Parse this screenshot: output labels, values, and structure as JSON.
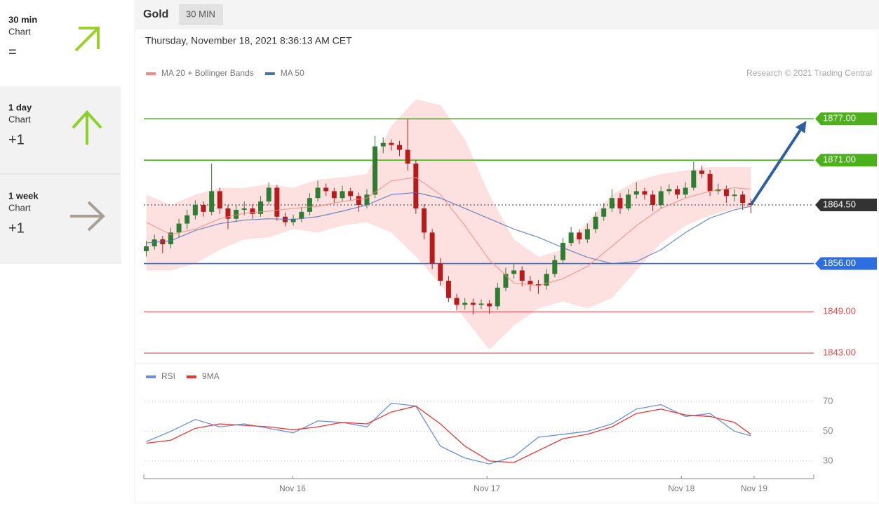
{
  "sidebar": [
    {
      "period": "30 min",
      "label": "Chart",
      "signal": "="
    },
    {
      "period": "1 day",
      "label": "Chart",
      "signal": "+1"
    },
    {
      "period": "1 week",
      "label": "Chart",
      "signal": "+1"
    }
  ],
  "header": {
    "instrument": "Gold",
    "interval": "30 MIN"
  },
  "timestamp": "Thursday, November 18, 2021 8:36:13 AM CET",
  "credit": "Research © 2021 Trading Central",
  "chart_data": [
    {
      "type": "candlestick",
      "xlim": [
        -0.3,
        81.7
      ],
      "ylim": [
        1841.8,
        1881
      ],
      "up_color": "#2e7d32",
      "down_color": "#b71c1c",
      "candles": [
        [
          1857.8,
          1859.3,
          1857.0,
          1858.5
        ],
        [
          1858.5,
          1860.2,
          1858.0,
          1859.5
        ],
        [
          1859.5,
          1860.0,
          1857.5,
          1858.8
        ],
        [
          1858.8,
          1861.2,
          1858.2,
          1860.5
        ],
        [
          1860.5,
          1862.5,
          1859.8,
          1861.8
        ],
        [
          1861.8,
          1863.8,
          1861.0,
          1863.0
        ],
        [
          1863.0,
          1865.2,
          1862.4,
          1864.5
        ],
        [
          1864.5,
          1865.0,
          1862.8,
          1863.5
        ],
        [
          1863.5,
          1870.5,
          1863.0,
          1866.5
        ],
        [
          1866.5,
          1867.0,
          1863.2,
          1864.0
        ],
        [
          1864.0,
          1864.5,
          1861.0,
          1862.5
        ],
        [
          1862.5,
          1864.5,
          1862.0,
          1863.8
        ],
        [
          1863.8,
          1865.0,
          1863.0,
          1864.0
        ],
        [
          1864.0,
          1864.6,
          1862.5,
          1863.2
        ],
        [
          1863.2,
          1865.8,
          1862.8,
          1865.0
        ],
        [
          1865.0,
          1867.8,
          1864.5,
          1867.0
        ],
        [
          1867.0,
          1867.4,
          1862.2,
          1862.8
        ],
        [
          1862.8,
          1863.4,
          1861.4,
          1862.0
        ],
        [
          1862.0,
          1863.1,
          1861.5,
          1862.5
        ],
        [
          1862.5,
          1864.2,
          1862.0,
          1863.5
        ],
        [
          1863.5,
          1866.2,
          1863.0,
          1865.5
        ],
        [
          1865.5,
          1868.0,
          1865.0,
          1867.0
        ],
        [
          1867.0,
          1867.6,
          1865.8,
          1866.5
        ],
        [
          1866.5,
          1867.0,
          1864.8,
          1865.5
        ],
        [
          1865.5,
          1867.3,
          1865.0,
          1866.5
        ],
        [
          1866.5,
          1867.0,
          1865.2,
          1865.8
        ],
        [
          1865.8,
          1866.3,
          1863.5,
          1864.5
        ],
        [
          1864.5,
          1866.8,
          1864.0,
          1866.0
        ],
        [
          1866.0,
          1874.5,
          1865.5,
          1873.0
        ],
        [
          1873.0,
          1874.3,
          1872.0,
          1873.5
        ],
        [
          1873.5,
          1874.0,
          1872.4,
          1873.2
        ],
        [
          1873.2,
          1873.8,
          1871.6,
          1872.5
        ],
        [
          1872.5,
          1877.0,
          1869.5,
          1870.5
        ],
        [
          1870.5,
          1871.0,
          1863.2,
          1864.0
        ],
        [
          1864.0,
          1864.6,
          1859.5,
          1860.5
        ],
        [
          1860.5,
          1861.0,
          1855.2,
          1856.0
        ],
        [
          1856.0,
          1856.8,
          1852.8,
          1853.5
        ],
        [
          1853.5,
          1854.2,
          1850.4,
          1851.0
        ],
        [
          1851.0,
          1851.6,
          1849.2,
          1850.0
        ],
        [
          1850.0,
          1851.0,
          1849.3,
          1850.3
        ],
        [
          1850.3,
          1850.9,
          1848.6,
          1850.0
        ],
        [
          1850.0,
          1850.8,
          1849.4,
          1850.2
        ],
        [
          1850.2,
          1850.7,
          1848.7,
          1849.8
        ],
        [
          1849.8,
          1853.2,
          1849.3,
          1852.5
        ],
        [
          1852.5,
          1855.4,
          1852.0,
          1854.5
        ],
        [
          1854.5,
          1856.0,
          1853.8,
          1855.0
        ],
        [
          1855.0,
          1855.6,
          1852.7,
          1853.5
        ],
        [
          1853.5,
          1854.2,
          1852.0,
          1853.0
        ],
        [
          1853.0,
          1853.6,
          1851.6,
          1852.8
        ],
        [
          1852.8,
          1855.2,
          1852.2,
          1854.5
        ],
        [
          1854.5,
          1857.2,
          1854.0,
          1856.5
        ],
        [
          1856.5,
          1859.7,
          1856.0,
          1859.0
        ],
        [
          1859.0,
          1861.3,
          1858.5,
          1860.5
        ],
        [
          1860.5,
          1861.0,
          1858.8,
          1859.5
        ],
        [
          1859.5,
          1861.8,
          1859.0,
          1861.0
        ],
        [
          1861.0,
          1863.5,
          1860.4,
          1862.8
        ],
        [
          1862.8,
          1864.8,
          1862.2,
          1864.0
        ],
        [
          1864.0,
          1866.8,
          1863.5,
          1865.5
        ],
        [
          1865.5,
          1866.2,
          1863.2,
          1864.0
        ],
        [
          1864.0,
          1866.8,
          1863.6,
          1866.0
        ],
        [
          1866.0,
          1867.8,
          1865.4,
          1866.5
        ],
        [
          1866.5,
          1867.0,
          1865.3,
          1866.0
        ],
        [
          1866.0,
          1866.6,
          1863.6,
          1864.5
        ],
        [
          1864.5,
          1867.2,
          1864.0,
          1866.5
        ],
        [
          1866.5,
          1867.5,
          1866.0,
          1866.8
        ],
        [
          1866.8,
          1867.3,
          1865.4,
          1866.0
        ],
        [
          1866.0,
          1867.8,
          1865.5,
          1867.0
        ],
        [
          1867.0,
          1870.8,
          1866.6,
          1869.5
        ],
        [
          1869.5,
          1870.2,
          1868.4,
          1869.0
        ],
        [
          1869.0,
          1869.6,
          1865.8,
          1866.5
        ],
        [
          1866.5,
          1867.6,
          1866.0,
          1866.8
        ],
        [
          1866.8,
          1867.3,
          1864.8,
          1865.8
        ],
        [
          1865.8,
          1866.8,
          1865.0,
          1866.0
        ],
        [
          1866.0,
          1866.5,
          1863.8,
          1864.8
        ],
        [
          1864.8,
          1865.4,
          1863.3,
          1864.5
        ]
      ],
      "line_x": [
        0,
        3,
        6,
        9,
        12,
        15,
        18,
        21,
        24,
        27,
        30,
        33,
        36,
        39,
        42,
        45,
        48,
        51,
        54,
        57,
        60,
        63,
        66,
        69,
        72,
        74
      ],
      "series": [
        {
          "name": "MA 20 + Bollinger Bands",
          "color": "#f28b82",
          "band_color": "#fde0e0",
          "values": [
            1862.0,
            1860.2,
            1861.0,
            1862.5,
            1863.3,
            1863.6,
            1864.0,
            1864.3,
            1865.0,
            1865.5,
            1868.0,
            1868.5,
            1866.0,
            1861.5,
            1856.5,
            1853.2,
            1852.8,
            1853.8,
            1855.6,
            1858.5,
            1861.5,
            1864.0,
            1865.5,
            1866.5,
            1867.0,
            1866.8
          ],
          "upper": [
            1866.0,
            1864.5,
            1866.0,
            1867.0,
            1867.0,
            1867.5,
            1867.0,
            1868.2,
            1868.5,
            1869.0,
            1876.0,
            1879.8,
            1879.0,
            1874.0,
            1866.0,
            1859.5,
            1857.0,
            1858.0,
            1862.0,
            1866.0,
            1868.0,
            1869.0,
            1869.5,
            1870.0,
            1870.0,
            1870.0
          ],
          "lower": [
            1855.0,
            1855.0,
            1856.0,
            1858.0,
            1859.5,
            1859.8,
            1861.0,
            1860.5,
            1861.5,
            1862.0,
            1860.5,
            1857.0,
            1853.0,
            1848.0,
            1843.5,
            1847.0,
            1849.5,
            1850.5,
            1849.5,
            1851.0,
            1855.0,
            1859.0,
            1861.5,
            1863.0,
            1864.0,
            1864.2
          ]
        },
        {
          "name": "MA 50",
          "color": "#4a6fb5",
          "values": [
            1859.0,
            1859.3,
            1860.8,
            1861.8,
            1862.3,
            1862.5,
            1862.4,
            1862.8,
            1863.6,
            1864.5,
            1866.0,
            1866.3,
            1865.5,
            1864.0,
            1862.5,
            1861.0,
            1859.8,
            1858.3,
            1856.9,
            1856.0,
            1856.3,
            1858.0,
            1860.5,
            1862.6,
            1863.8,
            1864.3
          ]
        }
      ],
      "levels": [
        {
          "value": 1877,
          "label": "1877.00",
          "color": "#4caf1c",
          "style": "solid",
          "label_box": true
        },
        {
          "value": 1871,
          "label": "1871.00",
          "color": "#4caf1c",
          "style": "solid",
          "label_box": true
        },
        {
          "value": 1864.5,
          "label": "1864.50",
          "color": "#333333",
          "style": "dotted",
          "label_box": true
        },
        {
          "value": 1856,
          "label": "1856.00",
          "color": "#2d6fe0",
          "style": "solid",
          "label_box": true
        },
        {
          "value": 1849,
          "label": "1849.00",
          "color": "#f04a4a",
          "style": "solid",
          "label_box": false
        },
        {
          "value": 1843,
          "label": "1843.00",
          "color": "#f04a4a",
          "style": "solid",
          "label_box": false
        }
      ],
      "projection": {
        "x": [
          74,
          80.8
        ],
        "y": [
          1864.5,
          1876.7
        ],
        "color": "#2f5f9e"
      }
    },
    {
      "type": "line",
      "xlim": [
        -0.3,
        81.7
      ],
      "ylim": [
        20,
        90
      ],
      "yticks": [
        30,
        50,
        70
      ],
      "xticks": [
        {
          "value": 17.9,
          "label": "Nov 16"
        },
        {
          "value": 41.7,
          "label": "Nov 17"
        },
        {
          "value": 65.5,
          "label": "Nov 18"
        },
        {
          "value": 74.4,
          "label": "Nov 19"
        }
      ],
      "line_x": [
        0,
        3,
        6,
        9,
        12,
        15,
        18,
        21,
        24,
        27,
        30,
        33,
        36,
        39,
        42,
        45,
        48,
        51,
        54,
        57,
        60,
        63,
        66,
        69,
        72,
        74
      ],
      "series": [
        {
          "name": "RSI",
          "color": "#6a8fdf",
          "values": [
            43,
            50,
            58,
            53,
            55,
            52,
            49,
            57,
            56,
            53,
            69,
            67,
            40,
            32,
            28,
            33,
            46,
            48,
            50,
            55,
            65,
            68,
            60,
            62,
            50,
            47
          ]
        },
        {
          "name": "9MA",
          "color": "#e53935",
          "values": [
            42,
            44,
            52,
            55,
            54,
            53,
            51,
            53,
            56,
            55,
            63,
            67,
            55,
            40,
            30,
            29,
            37,
            45,
            48,
            53,
            62,
            65,
            61,
            60,
            56,
            48
          ]
        }
      ]
    }
  ]
}
